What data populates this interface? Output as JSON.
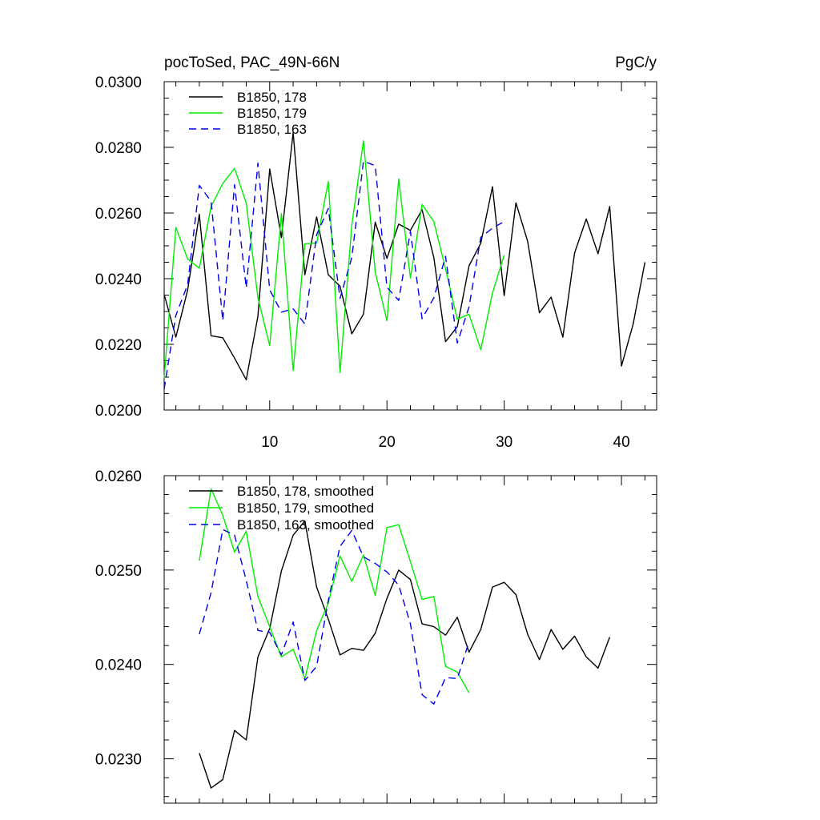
{
  "chart_data": [
    {
      "type": "line",
      "title": "pocToSed, PAC_49N-66N",
      "units": "PgC/y",
      "xlim": [
        1,
        43
      ],
      "ylim": [
        0.02,
        0.03
      ],
      "x_ticks": [
        10,
        20,
        30,
        40
      ],
      "x_tick_labels": [
        "10",
        "20",
        "30",
        "40"
      ],
      "y_ticks": [
        0.02,
        0.022,
        0.024,
        0.026,
        0.028,
        0.03
      ],
      "y_tick_labels": [
        "0.0200",
        "0.0220",
        "0.0240",
        "0.0260",
        "0.0280",
        "0.0300"
      ],
      "legend_position": "top-left",
      "series": [
        {
          "name": "B1850, 178",
          "color": "#000000",
          "dash": "solid",
          "x": [
            1,
            2,
            3,
            4,
            5,
            6,
            7,
            8,
            9,
            10,
            11,
            12,
            13,
            14,
            15,
            16,
            17,
            18,
            19,
            20,
            21,
            22,
            23,
            24,
            25,
            26,
            27,
            28,
            29,
            30,
            31,
            32,
            33,
            34,
            35,
            36,
            37,
            38,
            39,
            40,
            41,
            42
          ],
          "values": [
            0.02352,
            0.02222,
            0.02365,
            0.02596,
            0.02226,
            0.0222,
            0.02158,
            0.02092,
            0.02286,
            0.02734,
            0.02525,
            0.02845,
            0.02412,
            0.02588,
            0.02412,
            0.02377,
            0.02232,
            0.02292,
            0.02572,
            0.02462,
            0.02566,
            0.02547,
            0.0261,
            0.02464,
            0.02208,
            0.02254,
            0.02439,
            0.02508,
            0.0268,
            0.02348,
            0.02631,
            0.02514,
            0.02296,
            0.02344,
            0.02222,
            0.02478,
            0.02582,
            0.02476,
            0.0262,
            0.02134,
            0.02262,
            0.0245
          ]
        },
        {
          "name": "B1850, 179",
          "color": "#00ee00",
          "dash": "solid",
          "x": [
            1,
            2,
            3,
            4,
            5,
            6,
            7,
            8,
            9,
            10,
            11,
            12,
            13,
            14,
            15,
            16,
            17,
            18,
            19,
            20,
            21,
            22,
            23,
            24,
            25,
            26,
            27,
            28,
            29,
            30
          ],
          "values": [
            0.02096,
            0.02556,
            0.0246,
            0.02432,
            0.0262,
            0.0269,
            0.02736,
            0.0263,
            0.02342,
            0.02196,
            0.02598,
            0.0212,
            0.02506,
            0.02508,
            0.02696,
            0.02114,
            0.02562,
            0.0282,
            0.0242,
            0.02272,
            0.02704,
            0.02402,
            0.02626,
            0.02574,
            0.0243,
            0.02276,
            0.02292,
            0.02184,
            0.02356,
            0.02472
          ]
        },
        {
          "name": "B1850, 163",
          "color": "#0000ee",
          "dash": "dashed",
          "x": [
            1,
            2,
            3,
            4,
            5,
            6,
            7,
            8,
            9,
            10,
            11,
            12,
            13,
            14,
            15,
            16,
            17,
            18,
            19,
            20,
            21,
            22,
            23,
            24,
            25,
            26,
            27,
            28,
            29,
            30
          ],
          "values": [
            0.02064,
            0.02288,
            0.02382,
            0.02684,
            0.02636,
            0.02272,
            0.02686,
            0.02372,
            0.02752,
            0.02366,
            0.02298,
            0.02308,
            0.02262,
            0.02534,
            0.02614,
            0.0234,
            0.02464,
            0.02758,
            0.02744,
            0.02374,
            0.02334,
            0.02544,
            0.02278,
            0.02342,
            0.02468,
            0.02204,
            0.02314,
            0.02526,
            0.02554,
            0.02574
          ]
        }
      ]
    },
    {
      "type": "line",
      "xlim": [
        1,
        43
      ],
      "ylim": [
        0.02253,
        0.026
      ],
      "x_ticks": [
        10,
        20,
        30,
        40
      ],
      "y_ticks": [
        0.023,
        0.024,
        0.025,
        0.026
      ],
      "y_tick_labels": [
        "0.0230",
        "0.0240",
        "0.0250",
        "0.0260"
      ],
      "legend_position": "top-left",
      "series": [
        {
          "name": "B1850, 178, smoothed",
          "color": "#000000",
          "dash": "solid",
          "x": [
            4,
            5,
            6,
            7,
            8,
            9,
            10,
            11,
            12,
            13,
            14,
            15,
            16,
            17,
            18,
            19,
            20,
            21,
            22,
            23,
            24,
            25,
            26,
            27,
            28,
            29,
            30,
            31,
            32,
            33,
            34,
            35,
            36,
            37,
            38,
            39
          ],
          "values": [
            0.02306,
            0.02269,
            0.02278,
            0.0233,
            0.0232,
            0.02408,
            0.02438,
            0.02499,
            0.02537,
            0.02552,
            0.02482,
            0.02448,
            0.0241,
            0.02417,
            0.02415,
            0.02433,
            0.0247,
            0.025,
            0.0249,
            0.02443,
            0.0244,
            0.02431,
            0.0245,
            0.02413,
            0.02437,
            0.02482,
            0.02487,
            0.02474,
            0.02432,
            0.02405,
            0.02437,
            0.02416,
            0.0243,
            0.02408,
            0.02396,
            0.02429
          ]
        },
        {
          "name": "B1850, 179, smoothed",
          "color": "#00ee00",
          "dash": "solid",
          "x": [
            4,
            5,
            6,
            7,
            8,
            9,
            10,
            11,
            12,
            13,
            14,
            15,
            16,
            17,
            18,
            19,
            20,
            21,
            22,
            23,
            24,
            25,
            26,
            27
          ],
          "values": [
            0.0251,
            0.02586,
            0.02558,
            0.02519,
            0.02541,
            0.02472,
            0.0244,
            0.02408,
            0.02416,
            0.02385,
            0.02436,
            0.02465,
            0.02515,
            0.02488,
            0.02516,
            0.02473,
            0.02545,
            0.02548,
            0.02509,
            0.02469,
            0.02472,
            0.02398,
            0.02392,
            0.0237
          ]
        },
        {
          "name": "B1850, 163, smoothed",
          "color": "#0000ee",
          "dash": "dashed",
          "x": [
            4,
            5,
            6,
            7,
            8,
            9,
            10,
            11,
            12,
            13,
            14,
            15,
            16,
            17,
            18,
            19,
            20,
            21,
            22,
            23,
            24,
            25,
            26,
            27
          ],
          "values": [
            0.02432,
            0.02476,
            0.02543,
            0.02537,
            0.02489,
            0.02436,
            0.02434,
            0.0241,
            0.02445,
            0.02383,
            0.02398,
            0.02468,
            0.02525,
            0.02542,
            0.02514,
            0.02507,
            0.02498,
            0.02484,
            0.02443,
            0.02368,
            0.02358,
            0.02386,
            0.02385,
            0.02424
          ]
        }
      ]
    }
  ]
}
